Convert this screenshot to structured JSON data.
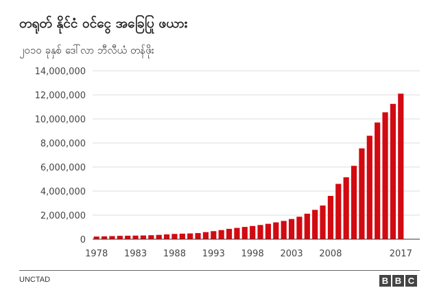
{
  "title": "တရုတ် နိုင်ငံ ဝင်ငွေ အခြေပြု ဖယား",
  "subtitle": "၂၀၁၀ ခုနှစ် ဒေါ်လာ ဘီလီယံ တန်ဖိုး",
  "source": "UNCTAD",
  "logo_letters": [
    "B",
    "B",
    "C"
  ],
  "colors": {
    "bar": "#d20a11",
    "grid": "#dddddd",
    "axis": "#333333"
  },
  "chart_data": {
    "type": "bar",
    "x": [
      1978,
      1979,
      1980,
      1981,
      1982,
      1983,
      1984,
      1985,
      1986,
      1987,
      1988,
      1989,
      1990,
      1991,
      1992,
      1993,
      1994,
      1995,
      1996,
      1997,
      1998,
      1999,
      2000,
      2001,
      2002,
      2003,
      2004,
      2005,
      2006,
      2007,
      2008,
      2009,
      2010,
      2011,
      2012,
      2013,
      2014,
      2015,
      2016,
      2017
    ],
    "values": [
      220000,
      240000,
      260000,
      280000,
      290000,
      300000,
      310000,
      330000,
      360000,
      400000,
      440000,
      460000,
      480000,
      510000,
      590000,
      670000,
      760000,
      860000,
      940000,
      1020000,
      1100000,
      1180000,
      1280000,
      1400000,
      1520000,
      1680000,
      1870000,
      2120000,
      2440000,
      2800000,
      3600000,
      4600000,
      5150000,
      6100000,
      7550000,
      8600000,
      9700000,
      10550000,
      11250000,
      12100000
    ],
    "x_tick_labels": [
      "1978",
      "1983",
      "1988",
      "1993",
      "1998",
      "2003",
      "2008",
      "2017"
    ],
    "x_tick_positions": [
      1978,
      1983,
      1988,
      1993,
      1998,
      2003,
      2008,
      2017
    ],
    "y_tick_labels": [
      "0",
      "2,000,000",
      "4,000,000",
      "6,000,000",
      "8,000,000",
      "10,000,000",
      "12,000,000",
      "14,000,000"
    ],
    "y_tick_values": [
      0,
      2000000,
      4000000,
      6000000,
      8000000,
      10000000,
      12000000,
      14000000
    ],
    "ylim": [
      0,
      14000000
    ],
    "grid": true
  }
}
